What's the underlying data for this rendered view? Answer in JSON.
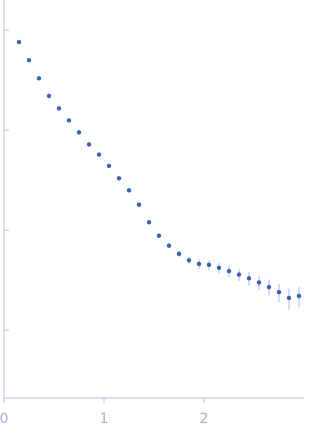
{
  "chart_data": {
    "type": "scatter",
    "x": [
      0.15,
      0.25,
      0.35,
      0.45,
      0.55,
      0.65,
      0.75,
      0.85,
      0.95,
      1.05,
      1.15,
      1.25,
      1.35,
      1.45,
      1.55,
      1.65,
      1.75,
      1.85,
      1.95,
      2.05,
      2.15,
      2.25,
      2.35,
      2.45,
      2.55,
      2.65,
      2.75,
      2.85,
      2.95
    ],
    "values": [
      0.76,
      0.5,
      0.33,
      0.22,
      0.165,
      0.125,
      0.095,
      0.072,
      0.057,
      0.044,
      0.033,
      0.025,
      0.018,
      0.012,
      0.0088,
      0.007,
      0.0058,
      0.005,
      0.0046,
      0.0045,
      0.0042,
      0.0039,
      0.0036,
      0.0033,
      0.003,
      0.0027,
      0.0024,
      0.0021,
      0.0022
    ],
    "errors": [
      0.03,
      0.015,
      0.008,
      0.005,
      0.003,
      0.002,
      0.0015,
      0.0012,
      0.001,
      0.0008,
      0.0006,
      0.0005,
      0.0004,
      0.0004,
      0.0004,
      0.0004,
      0.0004,
      0.0004,
      0.0005,
      0.0005,
      0.0005,
      0.0005,
      0.0005,
      0.0005,
      0.0005,
      0.0005,
      0.0005,
      0.0005,
      0.0005
    ],
    "color": "#3a62b3",
    "error_color": "#a9bde3",
    "axis_color": "#b4c2e0",
    "xlim": [
      0,
      3
    ],
    "xticks": [
      0,
      1,
      2
    ],
    "ylim": [
      0.00021,
      2
    ],
    "yticks": [
      1,
      0.1,
      0.01,
      0.001
    ],
    "ylog": true,
    "grid": false
  }
}
